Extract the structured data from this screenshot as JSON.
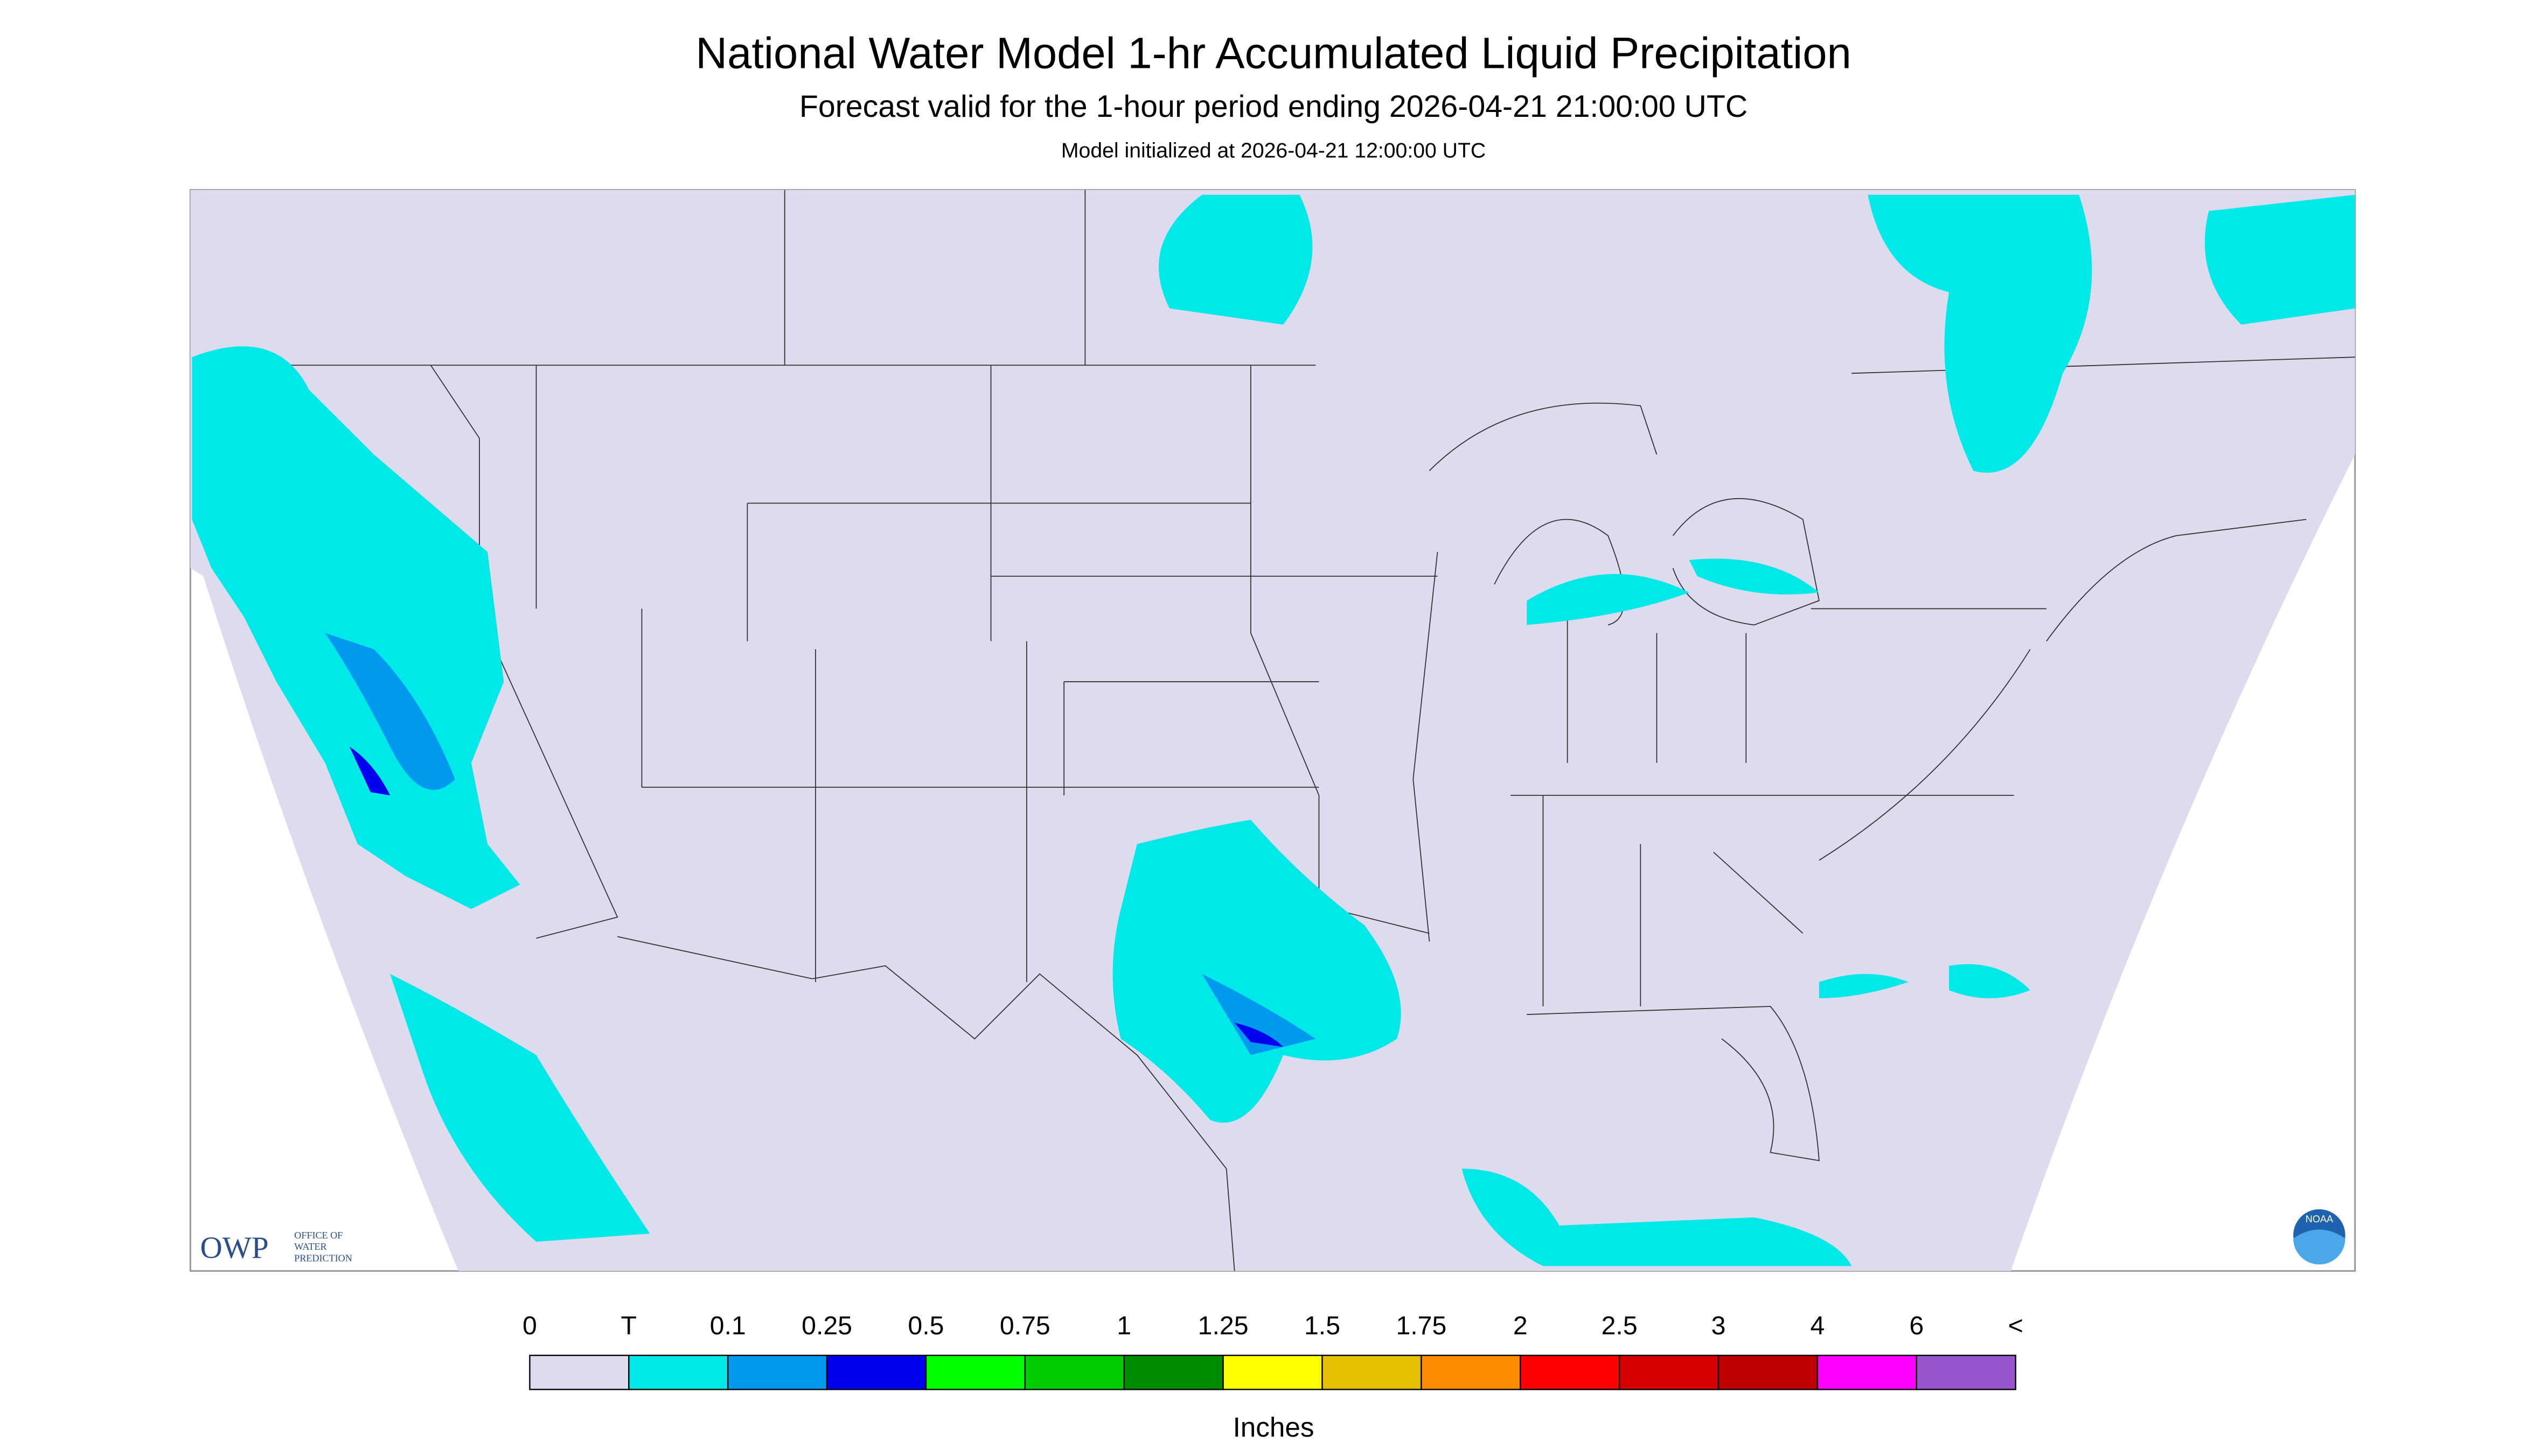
{
  "header": {
    "title": "National Water Model 1-hr Accumulated Liquid Precipitation",
    "subtitle": "Forecast valid for the 1-hour period ending 2026-04-21 21:00:00 UTC",
    "init": "Model initialized at 2026-04-21 12:00:00 UTC"
  },
  "logo": {
    "owp": "OWP",
    "owp_text": [
      "OFFICE OF",
      "WATER",
      "PREDICTION"
    ],
    "noaa": "NOAA"
  },
  "legend": {
    "labels": [
      "0",
      "T",
      "0.1",
      "0.25",
      "0.5",
      "0.75",
      "1",
      "1.25",
      "1.5",
      "1.75",
      "2",
      "2.5",
      "3",
      "4",
      "6",
      "<"
    ],
    "colors": [
      "#dcdcee",
      "#00e8e8",
      "#0099f0",
      "#0000f0",
      "#00ff00",
      "#00cc00",
      "#008c00",
      "#ffff00",
      "#e6c000",
      "#ff8c00",
      "#ff0000",
      "#d80000",
      "#c00000",
      "#ff00ff",
      "#9955cc"
    ],
    "unit": "Inches"
  }
}
